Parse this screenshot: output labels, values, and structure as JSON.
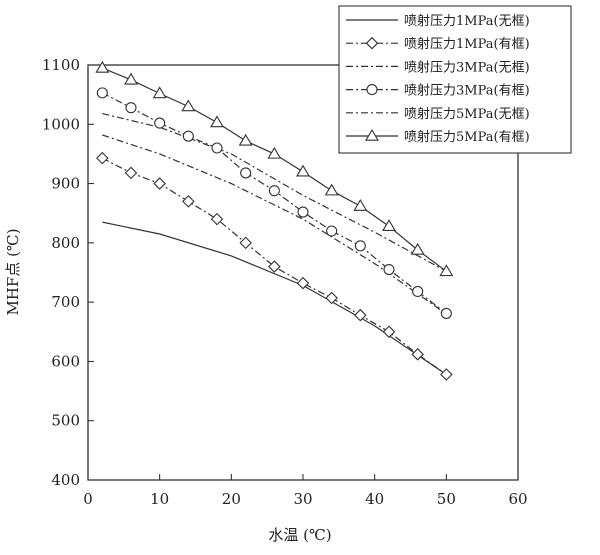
{
  "chart_data": {
    "type": "line",
    "xlabel": "水温 (℃)",
    "ylabel": "MHF点 (℃)",
    "xlim": [
      0,
      60
    ],
    "ylim": [
      400,
      1100
    ],
    "x_ticks": [
      0,
      10,
      20,
      30,
      40,
      50,
      60
    ],
    "y_ticks": [
      400,
      500,
      600,
      700,
      800,
      900,
      1000,
      1100
    ],
    "grid": false,
    "legend_position": "top-right",
    "series": [
      {
        "name": "喷射压力1MPa(无框)",
        "style": "solid",
        "marker": "none",
        "x": [
          2,
          10,
          20,
          30,
          40,
          50
        ],
        "y": [
          835,
          815,
          778,
          728,
          660,
          578
        ]
      },
      {
        "name": "喷射压力1MPa(有框)",
        "style": "dashdot",
        "marker": "diamond",
        "x": [
          2,
          6,
          10,
          14,
          18,
          22,
          26,
          30,
          34,
          38,
          42,
          46,
          50
        ],
        "y": [
          943,
          918,
          900,
          870,
          840,
          800,
          760,
          732,
          707,
          678,
          650,
          612,
          578
        ]
      },
      {
        "name": "喷射压力3MPa(无框)",
        "style": "dashdot",
        "marker": "none",
        "x": [
          2,
          10,
          20,
          30,
          40,
          50
        ],
        "y": [
          982,
          950,
          900,
          840,
          765,
          680
        ]
      },
      {
        "name": "喷射压力3MPa(有框)",
        "style": "dashdot",
        "marker": "circle",
        "x": [
          2,
          6,
          10,
          14,
          18,
          22,
          26,
          30,
          34,
          38,
          42,
          46,
          50
        ],
        "y": [
          1053,
          1028,
          1002,
          980,
          960,
          918,
          888,
          852,
          820,
          795,
          755,
          718,
          681
        ]
      },
      {
        "name": "喷射压力5MPa(无框)",
        "style": "dashdot",
        "marker": "none",
        "x": [
          2,
          10,
          20,
          30,
          40,
          50
        ],
        "y": [
          1018,
          995,
          950,
          880,
          818,
          752
        ]
      },
      {
        "name": "喷射压力5MPa(有框)",
        "style": "solid",
        "marker": "triangle",
        "x": [
          2,
          6,
          10,
          14,
          18,
          22,
          26,
          30,
          34,
          38,
          42,
          46,
          50
        ],
        "y": [
          1095,
          1075,
          1052,
          1030,
          1003,
          972,
          950,
          920,
          888,
          862,
          828,
          788,
          752
        ]
      }
    ]
  }
}
